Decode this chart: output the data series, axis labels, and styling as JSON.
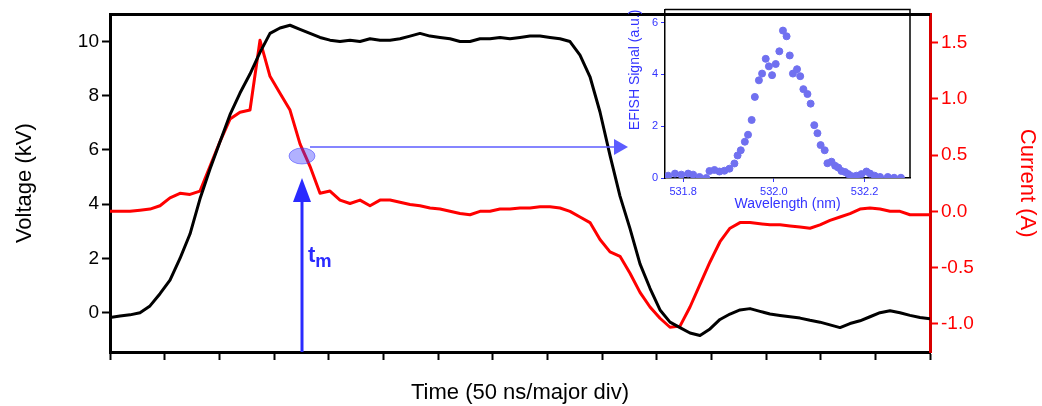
{
  "chart_data": [
    {
      "type": "line",
      "xlabel": "Time (50 ns/major div)",
      "ylabel": "Voltage (kV)",
      "y2label": "Current (A)",
      "categories": [
        null,
        null,
        null,
        null,
        null,
        null,
        null,
        null,
        null,
        null,
        null,
        null,
        null,
        null,
        null,
        null,
        null,
        null,
        null,
        null,
        null,
        null,
        null,
        null,
        null,
        null,
        null,
        null,
        null,
        null,
        null,
        null,
        null,
        null,
        null,
        null,
        null,
        null,
        null,
        null,
        null,
        null,
        null,
        null,
        null,
        null,
        null,
        null,
        null,
        null,
        null,
        null,
        null,
        null,
        null,
        null,
        null,
        null,
        null,
        null,
        null,
        null,
        null,
        null,
        null,
        null,
        null,
        null,
        null,
        null,
        null,
        null,
        null,
        null,
        null,
        null,
        null,
        null,
        null,
        null,
        null,
        null,
        null
      ],
      "series": [
        {
          "color": "#000000",
          "values": [
            -0.18,
            -0.12,
            -0.08,
            0.0,
            0.25,
            0.7,
            1.2,
            2.0,
            2.9,
            4.2,
            5.3,
            6.3,
            7.3,
            8.1,
            8.8,
            9.6,
            10.3,
            10.5,
            10.6,
            10.45,
            10.3,
            10.15,
            10.05,
            10.0,
            10.05,
            10.0,
            10.1,
            10.05,
            10.05,
            10.1,
            10.2,
            10.3,
            10.2,
            10.15,
            10.1,
            10.0,
            10.0,
            10.1,
            10.1,
            10.15,
            10.1,
            10.15,
            10.2,
            10.2,
            10.15,
            10.1,
            10.0,
            9.5,
            8.7,
            7.4,
            5.8,
            4.3,
            3.1,
            1.8,
            0.9,
            0.1,
            -0.35,
            -0.55,
            -0.75,
            -0.84,
            -0.6,
            -0.25,
            -0.05,
            0.1,
            0.15,
            0.05,
            -0.05,
            -0.1,
            -0.15,
            -0.2,
            -0.28,
            -0.35,
            -0.45,
            -0.55,
            -0.4,
            -0.3,
            -0.15,
            0.0,
            0.07,
            0.0,
            -0.1,
            -0.18,
            -0.22
          ]
        },
        {
          "color": "#ff0000",
          "axis": "y2",
          "values": [
            0.0,
            0.0,
            0.0,
            0.01,
            0.02,
            0.05,
            0.12,
            0.16,
            0.15,
            0.18,
            0.4,
            0.62,
            0.82,
            0.88,
            0.9,
            1.52,
            1.2,
            1.05,
            0.9,
            0.6,
            0.4,
            0.16,
            0.18,
            0.1,
            0.07,
            0.1,
            0.05,
            0.1,
            0.1,
            0.08,
            0.06,
            0.05,
            0.03,
            0.02,
            0.0,
            -0.02,
            -0.03,
            0.0,
            0.0,
            0.02,
            0.02,
            0.03,
            0.03,
            0.04,
            0.04,
            0.03,
            0.0,
            -0.05,
            -0.1,
            -0.25,
            -0.36,
            -0.4,
            -0.55,
            -0.72,
            -0.85,
            -0.95,
            -1.03,
            -1.02,
            -0.85,
            -0.65,
            -0.45,
            -0.27,
            -0.15,
            -0.1,
            -0.1,
            -0.11,
            -0.12,
            -0.12,
            -0.13,
            -0.14,
            -0.15,
            -0.12,
            -0.08,
            -0.05,
            -0.02,
            0.02,
            0.03,
            0.02,
            0.0,
            0.0,
            -0.03,
            -0.03,
            -0.03
          ]
        }
      ],
      "ylim": [
        -1.45,
        11
      ],
      "yticks": [
        0,
        2,
        4,
        6,
        8,
        10
      ],
      "y2lim": [
        -1.25,
        1.75
      ],
      "y2ticks": [
        {
          "value": -1,
          "label": "-1.0"
        },
        {
          "value": -0.5,
          "label": "-0.5"
        },
        {
          "value": 0,
          "label": "0.0"
        },
        {
          "value": 0.5,
          "label": "0.5"
        },
        {
          "value": 1,
          "label": "1.0"
        },
        {
          "value": 1.5,
          "label": "1.5"
        }
      ],
      "annotations": [
        "t$_{m}$"
      ]
    },
    {
      "type": "scatter",
      "xlabel": "Wavelength (nm)",
      "ylabel": "EFISH Signal (a.u.)",
      "color": "#7070f0",
      "marker": "circle",
      "x": [
        531.767,
        531.782,
        531.796,
        531.811,
        531.822,
        531.836,
        531.851,
        531.858,
        531.869,
        531.88,
        531.891,
        531.902,
        531.913,
        531.92,
        531.927,
        531.936,
        531.943,
        531.951,
        531.958,
        531.967,
        531.974,
        531.982,
        531.989,
        531.996,
        532.004,
        532.012,
        532.02,
        532.028,
        532.035,
        532.042,
        532.051,
        532.058,
        532.065,
        532.074,
        532.081,
        532.089,
        532.096,
        532.103,
        532.112,
        532.118,
        532.127,
        532.135,
        532.142,
        532.149,
        532.157,
        532.164,
        532.172,
        532.182,
        532.193,
        532.204,
        532.212,
        532.222,
        532.234,
        532.251,
        532.265,
        532.28
      ],
      "values": [
        0.09,
        0.17,
        0.13,
        0.17,
        0.13,
        0.04,
        0.0,
        0.27,
        0.31,
        0.25,
        0.28,
        0.36,
        0.56,
        0.87,
        1.07,
        1.4,
        1.67,
        2.24,
        3.13,
        3.77,
        4.03,
        4.6,
        4.31,
        3.97,
        4.4,
        4.89,
        5.69,
        5.47,
        4.73,
        4.03,
        4.2,
        3.93,
        3.43,
        3.24,
        2.87,
        2.04,
        1.73,
        1.27,
        1.07,
        0.57,
        0.63,
        0.47,
        0.4,
        0.27,
        0.23,
        0.15,
        0.07,
        0.09,
        0.15,
        0.25,
        0.17,
        0.09,
        0.04,
        0.04,
        0.01,
        0.01
      ],
      "xlim": [
        531.76,
        532.3
      ],
      "xticks": [
        531.8,
        {
          "value": 532,
          "label": "532.0"
        },
        532.2
      ],
      "ylim": [
        0,
        6.5
      ],
      "yticks": [
        0,
        2,
        4,
        6
      ]
    }
  ]
}
